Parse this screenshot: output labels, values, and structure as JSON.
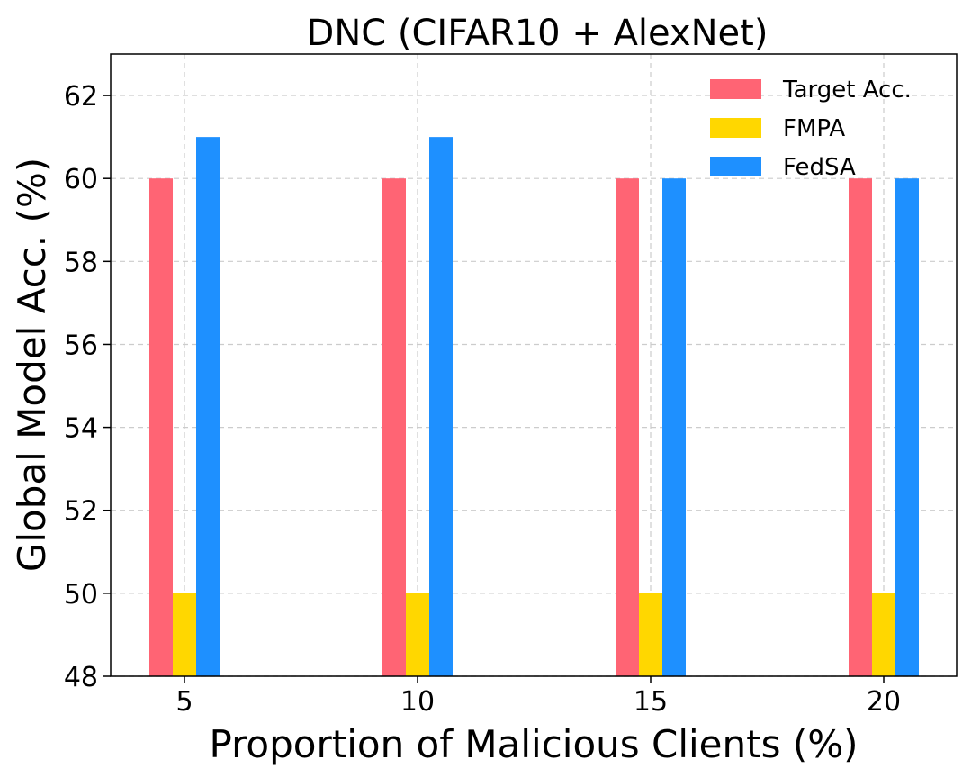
{
  "chart_data": {
    "type": "bar",
    "title": "DNC (CIFAR10 + AlexNet)",
    "xlabel": "Proportion of Malicious Clients (%)",
    "ylabel": "Global Model Acc. (%)",
    "categories": [
      "5",
      "10",
      "15",
      "20"
    ],
    "ylim": [
      48,
      63
    ],
    "yticks": [
      48,
      50,
      52,
      54,
      56,
      58,
      60,
      62
    ],
    "grid": true,
    "legend_position": "top-right",
    "series": [
      {
        "name": "Target Acc.",
        "color": "#ff6474",
        "values": [
          60,
          60,
          60,
          60
        ]
      },
      {
        "name": "FMPA",
        "color": "#ffd700",
        "values": [
          50,
          50,
          50,
          50
        ]
      },
      {
        "name": "FedSA",
        "color": "#1e90ff",
        "values": [
          61,
          61,
          60,
          60
        ]
      }
    ]
  }
}
